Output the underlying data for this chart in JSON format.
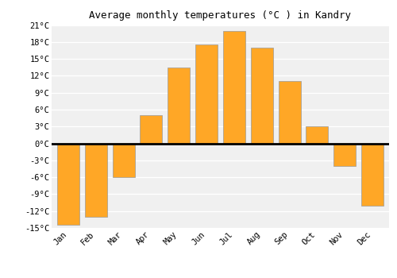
{
  "months": [
    "Jan",
    "Feb",
    "Mar",
    "Apr",
    "May",
    "Jun",
    "Jul",
    "Aug",
    "Sep",
    "Oct",
    "Nov",
    "Dec"
  ],
  "values": [
    -14.5,
    -13.0,
    -6.0,
    5.0,
    13.5,
    17.5,
    20.0,
    17.0,
    11.0,
    3.0,
    -4.0,
    -11.0
  ],
  "bar_color": "#FFA726",
  "bar_edge_color": "#999999",
  "title": "Average monthly temperatures (°C ) in Kandry",
  "ylim": [
    -15,
    21
  ],
  "yticks": [
    -15,
    -12,
    -9,
    -6,
    -3,
    0,
    3,
    6,
    9,
    12,
    15,
    18,
    21
  ],
  "ytick_labels": [
    "-15°C",
    "-12°C",
    "-9°C",
    "-6°C",
    "-3°C",
    "0°C",
    "3°C",
    "6°C",
    "9°C",
    "12°C",
    "15°C",
    "18°C",
    "21°C"
  ],
  "background_color": "#ffffff",
  "plot_bg_color": "#f0f0f0",
  "grid_color": "#ffffff",
  "title_fontsize": 9,
  "tick_fontsize": 7.5,
  "bar_width": 0.8
}
